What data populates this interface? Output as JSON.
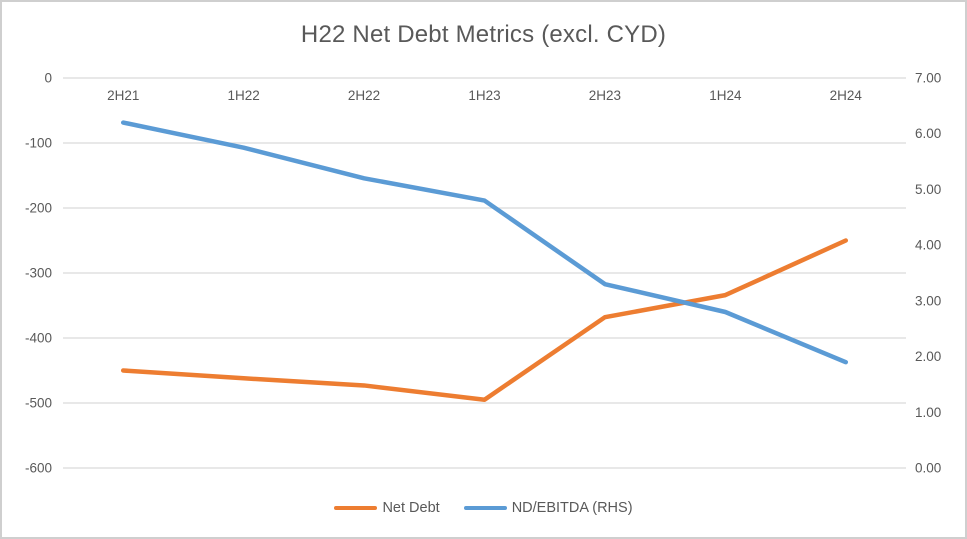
{
  "chart": {
    "title": "H22 Net Debt Metrics (excl. CYD)",
    "colors": {
      "net_debt": "#ED7D31",
      "nd_ebitda": "#5B9BD5",
      "gridline": "#D9D9D9",
      "axis_text": "#595959",
      "title_text": "#595959",
      "border": "#CFCFCF",
      "background": "#FFFFFF"
    }
  },
  "chart_data": {
    "type": "line",
    "title": "H22 Net Debt Metrics (excl. CYD)",
    "categories": [
      "2H21",
      "1H22",
      "2H22",
      "1H23",
      "2H23",
      "1H24",
      "2H24"
    ],
    "series": [
      {
        "name": "Net Debt",
        "axis": "left",
        "color": "#ED7D31",
        "values": [
          -450,
          -462,
          -473,
          -495,
          -368,
          -334,
          -250
        ]
      },
      {
        "name": "ND/EBITDA (RHS)",
        "axis": "right",
        "color": "#5B9BD5",
        "values": [
          6.2,
          5.75,
          5.2,
          4.8,
          3.3,
          2.8,
          1.9
        ]
      }
    ],
    "left_axis": {
      "min": -600,
      "max": 0,
      "tick_labels": [
        "0",
        "-100",
        "-200",
        "-300",
        "-400",
        "-500",
        "-600"
      ]
    },
    "right_axis": {
      "min": 0,
      "max": 7,
      "tick_labels": [
        "7.00",
        "6.00",
        "5.00",
        "4.00",
        "3.00",
        "2.00",
        "1.00",
        "0.00"
      ]
    },
    "grid": true,
    "legend_position": "bottom",
    "x_labels_position": "top-inside"
  },
  "legend": {
    "items": [
      {
        "label": "Net Debt",
        "color_path": "chart_data.series.0.color"
      },
      {
        "label": "ND/EBITDA (RHS)",
        "color_path": "chart_data.series.1.color"
      }
    ]
  }
}
